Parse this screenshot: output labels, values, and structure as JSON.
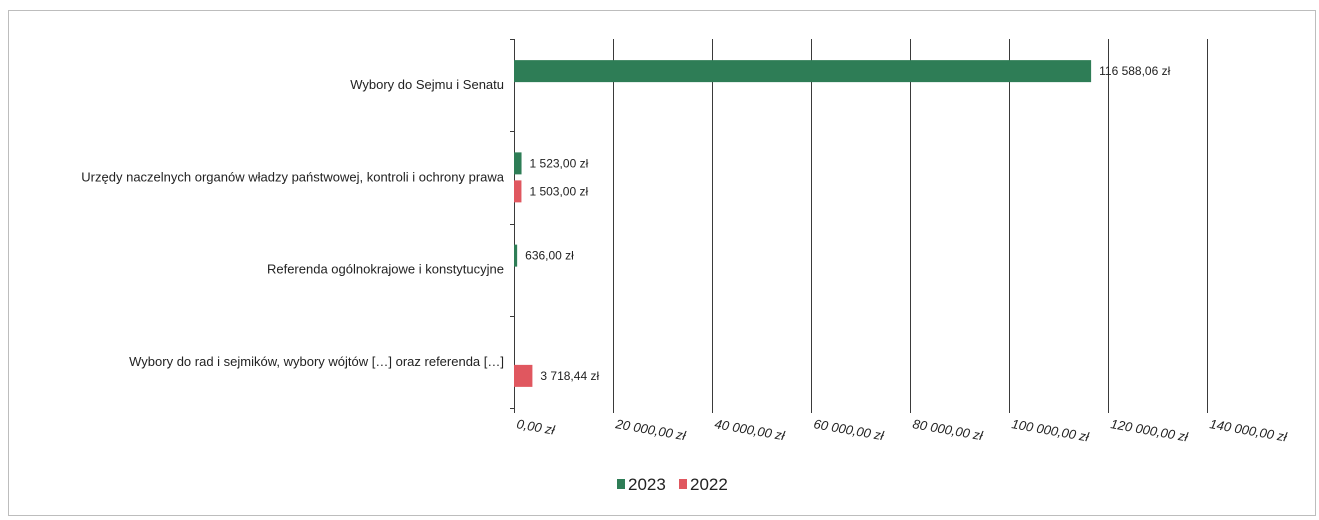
{
  "chart_data": {
    "type": "bar",
    "orientation": "horizontal",
    "categories": [
      "Wybory do Sejmu i Senatu",
      "Urzędy naczelnych organów władzy państwowej, kontroli i ochrony prawa",
      "Referenda ogólnokrajowe i konstytucyjne",
      "Wybory do rad i sejmików, wybory wójtów […] oraz referenda […]"
    ],
    "series": [
      {
        "name": "2023",
        "color": "#2e7d56",
        "values": [
          116588.06,
          1523.0,
          636.0,
          null
        ],
        "labels": [
          "116 588,06 zł",
          "1 523,00 zł",
          "636,00 zł",
          ""
        ]
      },
      {
        "name": "2022",
        "color": "#e0575f",
        "values": [
          null,
          1503.0,
          null,
          3718.44
        ],
        "labels": [
          "",
          "1 503,00 zł",
          "",
          "3 718,44 zł"
        ]
      }
    ],
    "xlim": [
      0,
      140000
    ],
    "xticks": [
      0,
      20000,
      40000,
      60000,
      80000,
      100000,
      120000,
      140000
    ],
    "xtick_labels": [
      "0,00 zł",
      "20 000,00 zł",
      "40 000,00 zł",
      "60 000,00 zł",
      "80 000,00 zł",
      "100 000,00 zł",
      "120 000,00 zł",
      "140 000,00 zł"
    ],
    "grid": true,
    "legend": {
      "position": "bottom",
      "items": [
        "2023",
        "2022"
      ]
    },
    "title": "",
    "xlabel": "",
    "ylabel": ""
  }
}
